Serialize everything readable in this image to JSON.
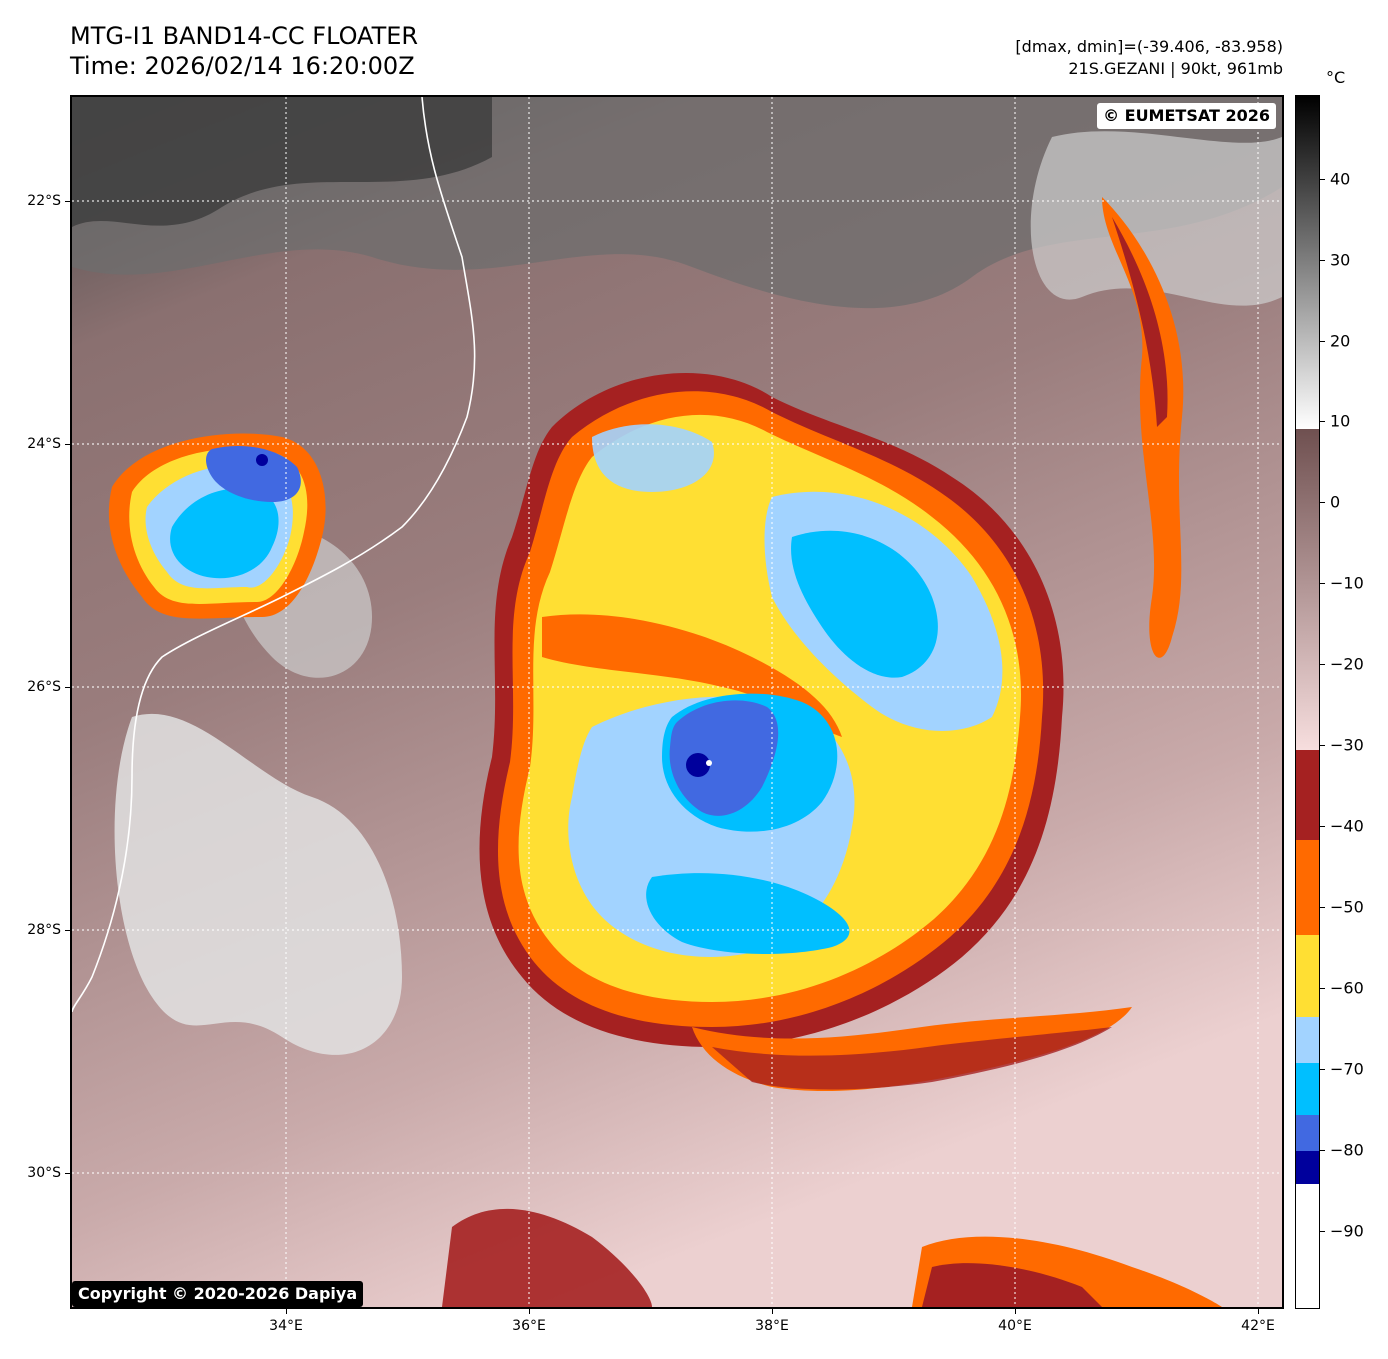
{
  "header": {
    "title_line1": "MTG-I1 BAND14-CC FLOATER",
    "title_line2": "Time: 2026/02/14 16:20:00Z",
    "range_text": "[dmax, dmin]=(-39.406, -83.958)",
    "storm_text": "21S.GEZANI | 90kt, 961mb"
  },
  "map": {
    "lat_labels": [
      "22°S",
      "24°S",
      "26°S",
      "28°S",
      "30°S"
    ],
    "lon_labels": [
      "34°E",
      "36°E",
      "38°E",
      "40°E",
      "42°E"
    ],
    "copyright": "Copyright © 2020-2026 Dapiya",
    "provider": "© EUMETSAT 2026"
  },
  "colorbar": {
    "unit": "°C",
    "ticks": [
      "40",
      "30",
      "20",
      "10",
      "0",
      "−10",
      "−20",
      "−30",
      "−40",
      "−50",
      "−60",
      "−70",
      "−80",
      "−90"
    ],
    "colors": {
      "warm_black": "#000000",
      "warm_white": "#ffffff",
      "brown_dark": "#6f5050",
      "pink_light": "#f7dede",
      "dark_red": "#a52121",
      "orange": "#ff6a00",
      "yellow": "#ffdf33",
      "light_blue": "#a2d3ff",
      "sky_blue": "#00bfff",
      "royal_blue": "#4169e1",
      "navy": "#00009c",
      "white_top": "#ffffff"
    }
  }
}
